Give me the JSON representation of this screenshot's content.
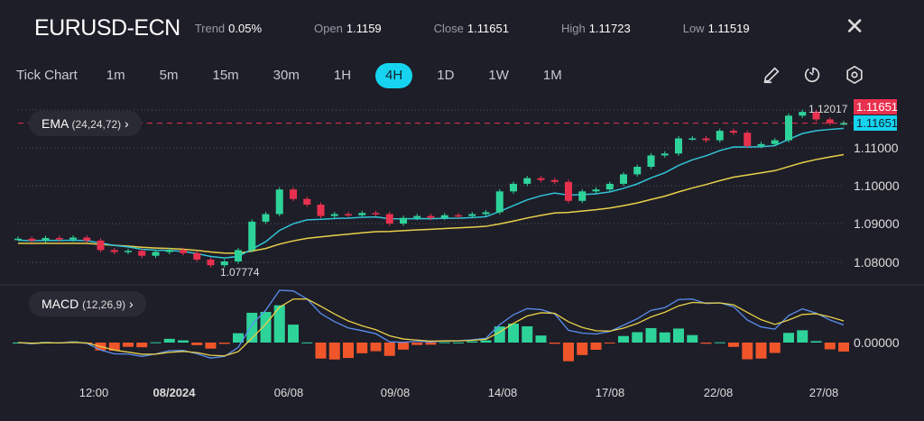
{
  "header": {
    "symbol": "EURUSD-ECN",
    "stats": [
      {
        "k": "Trend",
        "v": "0.05%"
      },
      {
        "k": "Open",
        "v": "1.1159"
      },
      {
        "k": "Close",
        "v": "1.11651"
      },
      {
        "k": "High",
        "v": "1.11723"
      },
      {
        "k": "Low",
        "v": "1.11519"
      }
    ],
    "close_icon": "close-icon"
  },
  "timeframes": [
    "Tick Chart",
    "1m",
    "5m",
    "15m",
    "30m",
    "1H",
    "4H",
    "1D",
    "1W",
    "1M"
  ],
  "active_timeframe": "4H",
  "tools": [
    "pencil-icon",
    "timer-icon",
    "settings-icon"
  ],
  "indicators": {
    "ema": {
      "name": "EMA",
      "params": "(24,24,72)"
    },
    "macd": {
      "name": "MACD",
      "params": "(12,26,9)"
    }
  },
  "colors": {
    "up": "#2ed39a",
    "down": "#e8314f",
    "ema_fast": "#30c4d8",
    "ema_slow": "#e8d04a",
    "macd_up": "#2ed39a",
    "macd_down": "#f0552a",
    "accent": "#16d4f0"
  },
  "chart_data": {
    "type": "candlestick",
    "price_axis": [
      "1.11000",
      "1.10000",
      "1.09000",
      "1.08000"
    ],
    "macd_axis": [
      "0.00000"
    ],
    "x_ticks": [
      "12:00",
      "08/2024",
      "06/08",
      "09/08",
      "14/08",
      "17/08",
      "22/08",
      "27/08"
    ],
    "ylim": [
      1.0765,
      1.1225
    ],
    "closes": [
      1.086,
      1.0855,
      1.0862,
      1.0858,
      1.0863,
      1.0855,
      1.083,
      1.0825,
      1.0828,
      1.0815,
      1.0825,
      1.083,
      1.0822,
      1.0805,
      1.079,
      1.08,
      1.083,
      1.0905,
      1.0925,
      1.099,
      1.0965,
      1.095,
      1.092,
      1.0925,
      1.0922,
      1.0928,
      1.0925,
      1.09,
      1.0915,
      1.092,
      1.0915,
      1.0922,
      1.092,
      1.0925,
      1.093,
      1.0985,
      1.1005,
      1.102,
      1.1015,
      1.101,
      1.096,
      1.0985,
      1.099,
      1.1005,
      1.103,
      1.105,
      1.108,
      1.1085,
      1.1125,
      1.1125,
      1.112,
      1.1145,
      1.114,
      1.1105,
      1.111,
      1.112,
      1.1185,
      1.1195,
      1.1175,
      1.1165,
      1.1165
    ],
    "high_label": "1.12017",
    "low_label": "1.07774",
    "last_price_bid": "1.11651",
    "last_price_ask": "1.11651"
  }
}
